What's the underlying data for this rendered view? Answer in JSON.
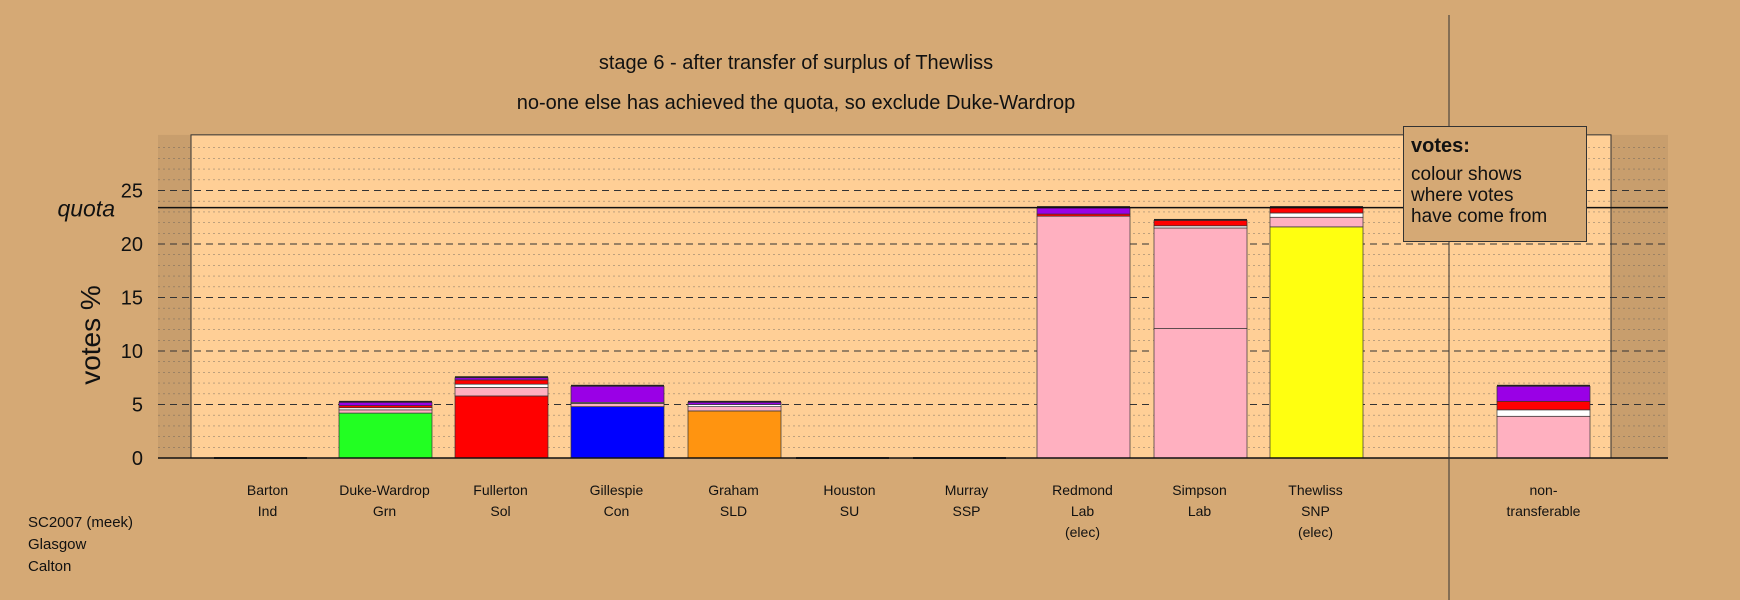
{
  "chart_data": {
    "type": "bar",
    "stacked": true,
    "title": "stage 6 - after transfer of surplus of Thewliss",
    "subtitle": "no-one else has achieved the quota, so exclude Duke-Wardrop",
    "ylabel": "votes %",
    "quota_label": "quota",
    "quota": 23.4,
    "ylim": [
      0,
      28
    ],
    "yticks": [
      0,
      5,
      10,
      15,
      20,
      25
    ],
    "grid": true,
    "categories": [
      {
        "name": "Barton",
        "party": "Ind",
        "note": ""
      },
      {
        "name": "Duke-Wardrop",
        "party": "Grn",
        "note": ""
      },
      {
        "name": "Fullerton",
        "party": "Sol",
        "note": ""
      },
      {
        "name": "Gillespie",
        "party": "Con",
        "note": ""
      },
      {
        "name": "Graham",
        "party": "SLD",
        "note": ""
      },
      {
        "name": "Houston",
        "party": "SU",
        "note": ""
      },
      {
        "name": "Murray",
        "party": "SSP",
        "note": ""
      },
      {
        "name": "Redmond",
        "party": "Lab",
        "note": "(elec)"
      },
      {
        "name": "Simpson",
        "party": "Lab",
        "note": ""
      },
      {
        "name": "Thewliss",
        "party": "SNP",
        "note": "(elec)"
      }
    ],
    "bars": [
      {
        "segments": []
      },
      {
        "segments": [
          {
            "value": 4.2,
            "color": "#22ff22"
          },
          {
            "value": 0.3,
            "color": "#ffb0c0"
          },
          {
            "value": 0.2,
            "color": "#ffffff"
          },
          {
            "value": 0.2,
            "color": "#ff0000"
          },
          {
            "value": 0.3,
            "color": "#9a00e6"
          }
        ]
      },
      {
        "segments": [
          {
            "value": 5.8,
            "color": "#ff0000"
          },
          {
            "value": 0.8,
            "color": "#ffb0c0"
          },
          {
            "value": 0.3,
            "color": "#ffffff"
          },
          {
            "value": 0.4,
            "color": "#ff0000"
          },
          {
            "value": 0.2,
            "color": "#9a00e6"
          }
        ]
      },
      {
        "segments": [
          {
            "value": 4.8,
            "color": "#0000ff"
          },
          {
            "value": 0.3,
            "color": "#ffb0c0"
          },
          {
            "value": 0.1,
            "color": "#ffffff"
          },
          {
            "value": 1.5,
            "color": "#9a00e6"
          }
        ]
      },
      {
        "segments": [
          {
            "value": 4.4,
            "color": "#ff9410"
          },
          {
            "value": 0.4,
            "color": "#ffb0c0"
          },
          {
            "value": 0.2,
            "color": "#ffffff"
          },
          {
            "value": 0.2,
            "color": "#9a00e6"
          }
        ]
      },
      {
        "segments": []
      },
      {
        "segments": []
      },
      {
        "segments": [
          {
            "value": 22.6,
            "color": "#ffb0c0"
          },
          {
            "value": 0.2,
            "color": "#ff0000"
          },
          {
            "value": 0.6,
            "color": "#9a00e6"
          }
        ]
      },
      {
        "segments": [
          {
            "value": 12.1,
            "color": "#ffb0c0"
          },
          {
            "value": 9.4,
            "color": "#ffb0c0"
          },
          {
            "value": 0.2,
            "color": "#ffffff"
          },
          {
            "value": 0.5,
            "color": "#ff0000"
          }
        ]
      },
      {
        "segments": [
          {
            "value": 21.6,
            "color": "#ffff10"
          },
          {
            "value": 0.9,
            "color": "#ffb0c0"
          },
          {
            "value": 0.4,
            "color": "#ffffff"
          },
          {
            "value": 0.5,
            "color": "#ff0000"
          }
        ]
      }
    ],
    "nontransferable": {
      "label_line1": "non-",
      "label_line2": "transferable",
      "segments": [
        {
          "value": 3.9,
          "color": "#ffb0c0"
        },
        {
          "value": 0.6,
          "color": "#ffffff"
        },
        {
          "value": 0.8,
          "color": "#ff0000"
        },
        {
          "value": 1.4,
          "color": "#9a00e6"
        }
      ]
    }
  },
  "legend": {
    "title": "votes:",
    "line1": "colour shows",
    "line2": "where votes",
    "line3": "have come from"
  },
  "footer": {
    "line1": "SC2007 (meek)",
    "line2": "Glasgow",
    "line3": "Calton"
  }
}
